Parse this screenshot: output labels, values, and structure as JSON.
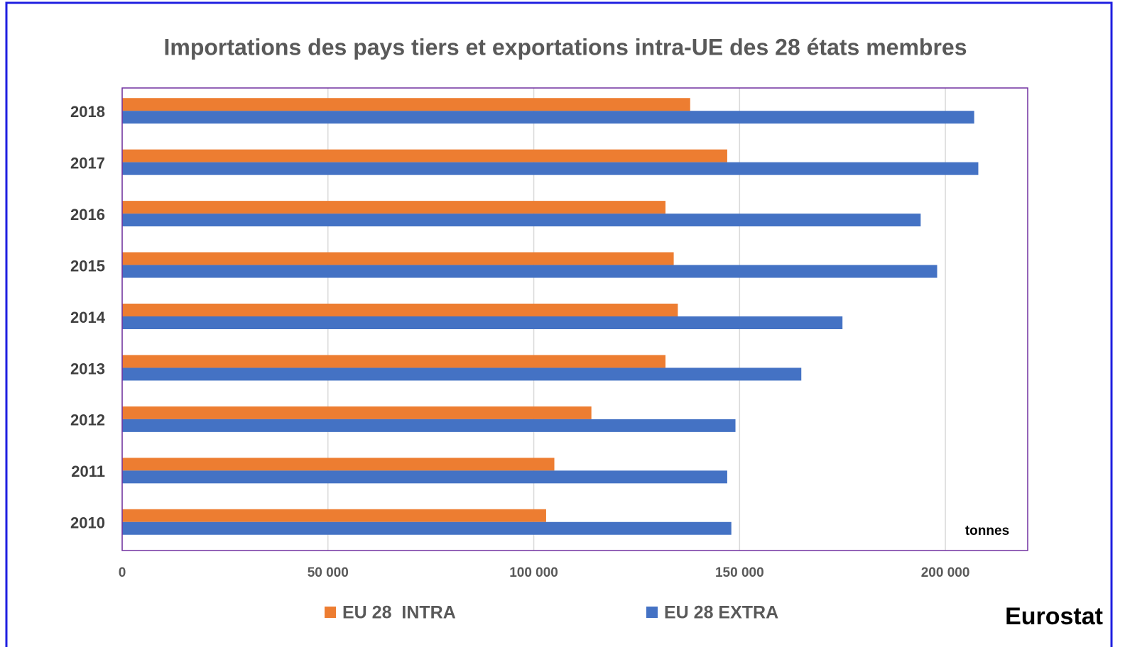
{
  "chart_data": {
    "type": "barh",
    "title": "Importations des pays tiers et exportations intra-UE des 28 états membres",
    "categories": [
      "2018",
      "2017",
      "2016",
      "2015",
      "2014",
      "2013",
      "2012",
      "2011",
      "2010"
    ],
    "series": [
      {
        "name": "EU 28  INTRA",
        "color": "#ed7d31",
        "values": [
          138000,
          147000,
          132000,
          134000,
          135000,
          132000,
          114000,
          105000,
          103000
        ]
      },
      {
        "name": "EU 28 EXTRA",
        "color": "#4472c4",
        "values": [
          207000,
          208000,
          194000,
          198000,
          175000,
          165000,
          149000,
          147000,
          148000
        ]
      }
    ],
    "xlim": [
      0,
      220000
    ],
    "xticks": [
      0,
      {
        "value": 50000,
        "label": "50 000"
      },
      {
        "value": 100000,
        "label": "100 000"
      },
      {
        "value": 150000,
        "label": "150 000"
      },
      {
        "value": 200000,
        "label": "200 000"
      }
    ],
    "grid": true,
    "unit_label": "tonnes",
    "source": "Eurostat",
    "legend": "bottom"
  }
}
